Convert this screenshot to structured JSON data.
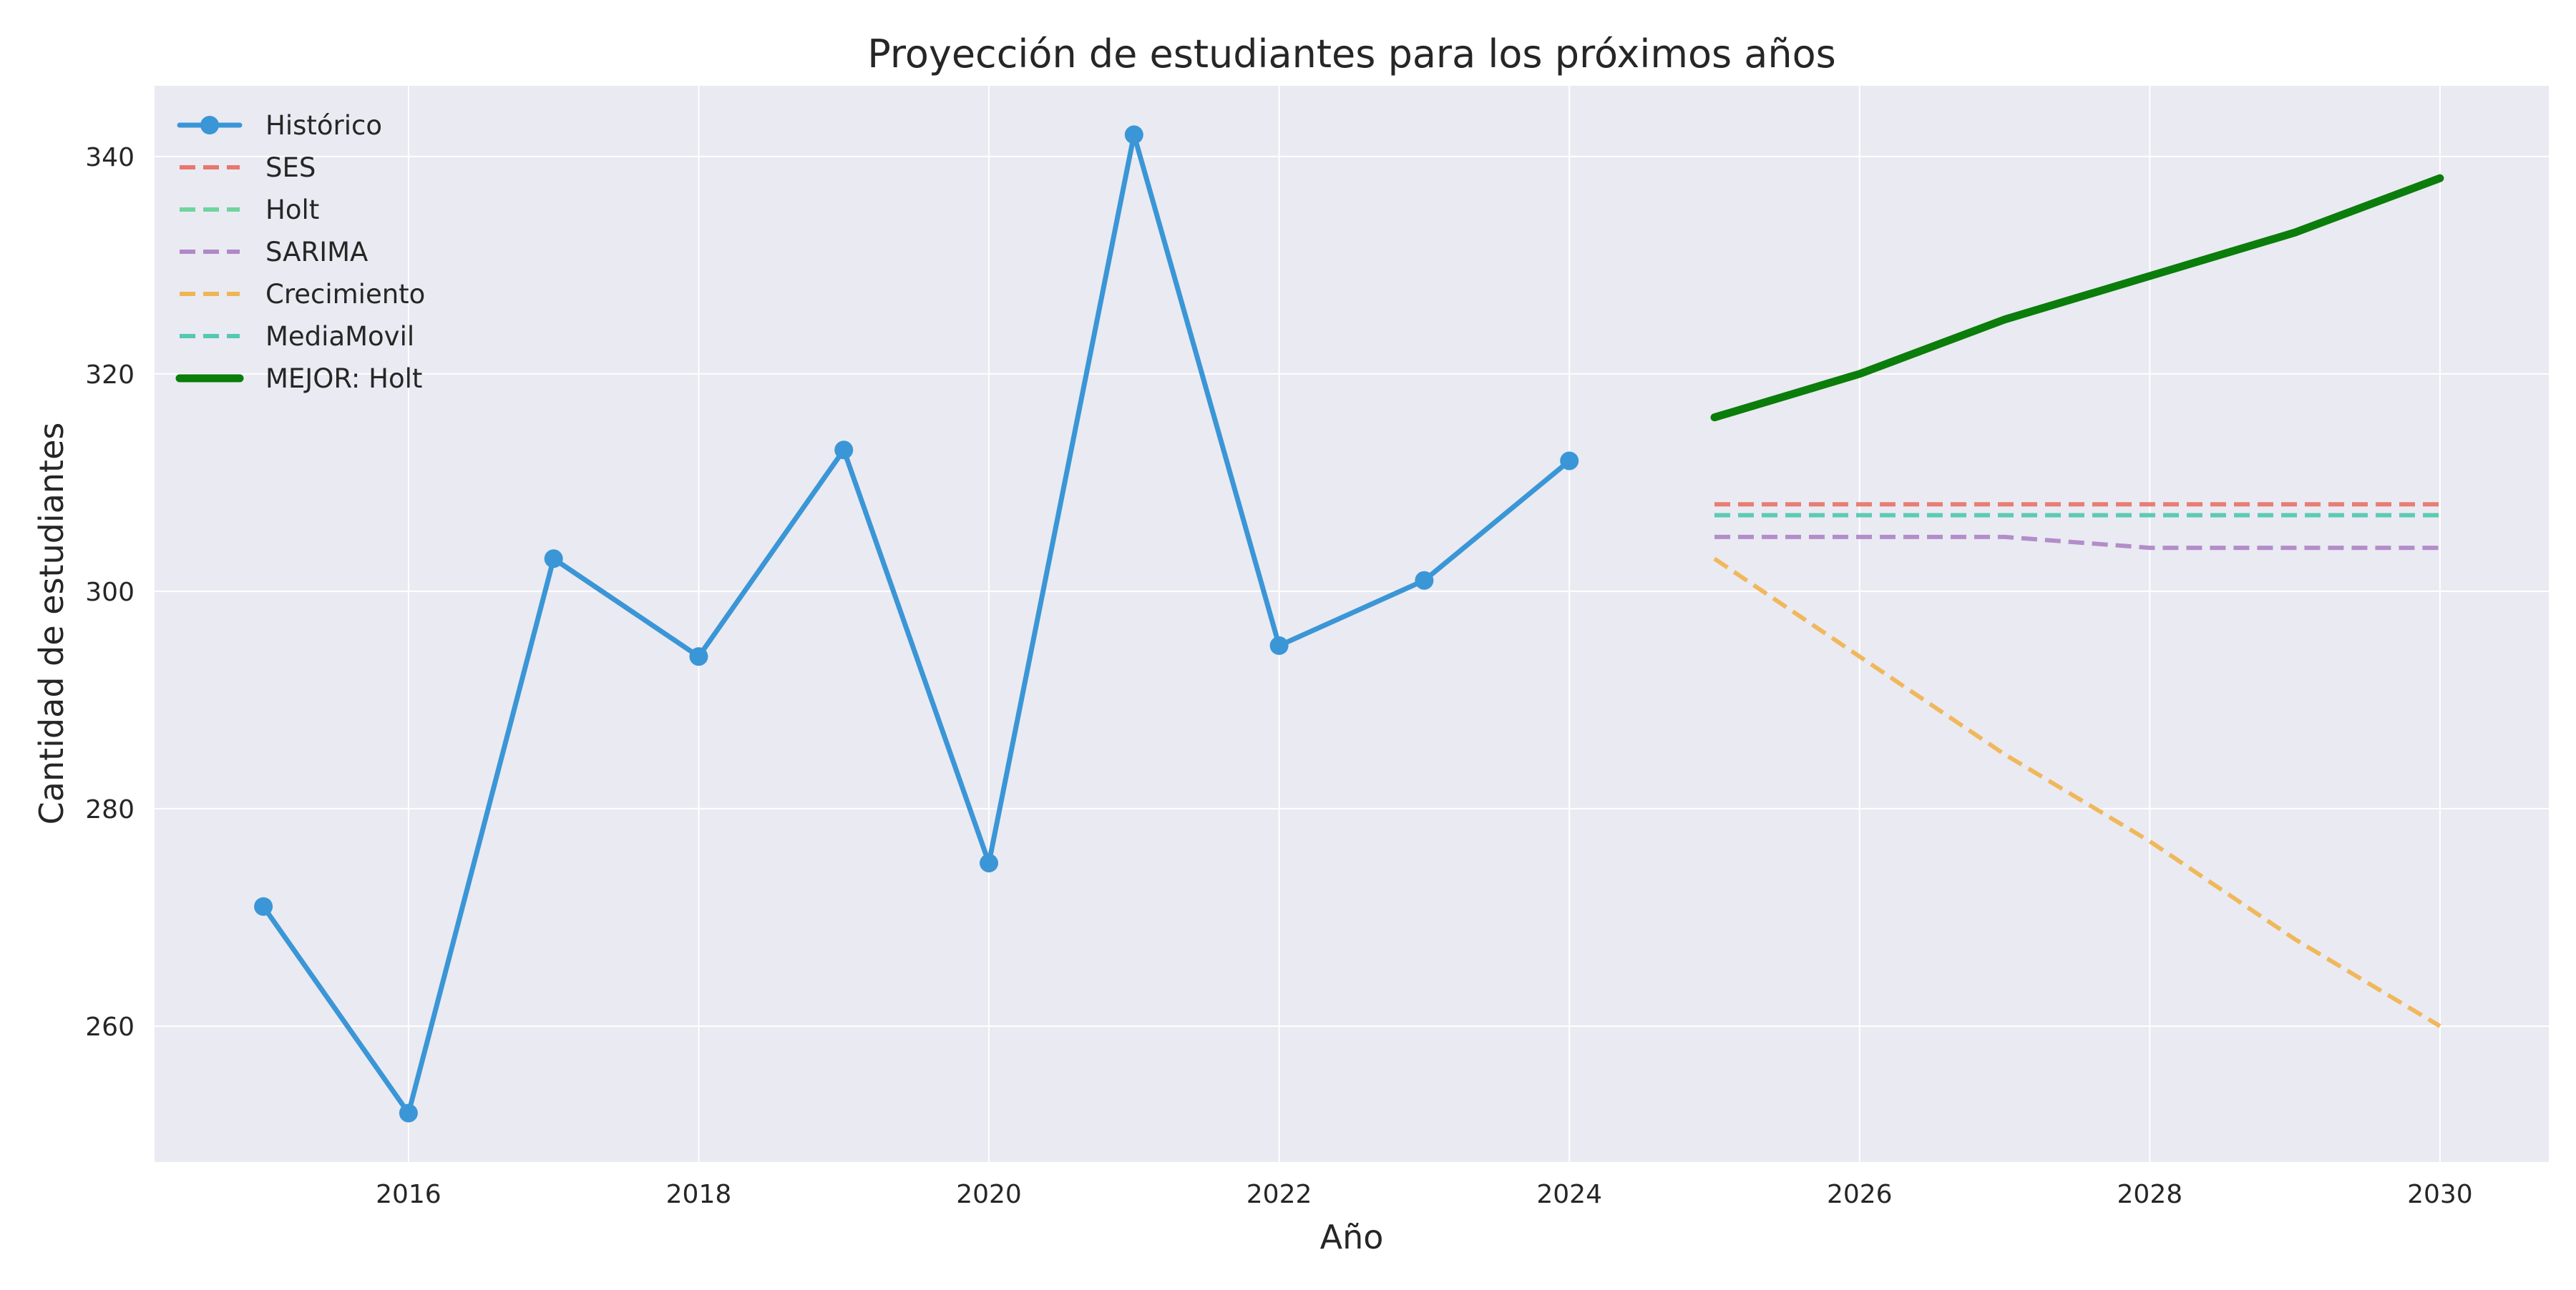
{
  "chart_data": {
    "type": "line",
    "title": "Proyección de estudiantes para los próximos años",
    "xlabel": "Año",
    "ylabel": "Cantidad de estudiantes",
    "xlim": [
      2014.25,
      2030.75
    ],
    "ylim": [
      247.5,
      346.5
    ],
    "xticks": [
      "2016",
      "2018",
      "2020",
      "2022",
      "2024",
      "2026",
      "2028",
      "2030"
    ],
    "yticks": [
      "260",
      "280",
      "300",
      "320",
      "340"
    ],
    "grid": true,
    "legend_position": "top-left",
    "series": [
      {
        "name": "Histórico",
        "style": "solid-markers",
        "color": "#3a96d6",
        "x": [
          2015,
          2016,
          2017,
          2018,
          2019,
          2020,
          2021,
          2022,
          2023,
          2024
        ],
        "y": [
          271,
          252,
          303,
          294,
          313,
          275,
          342,
          295,
          301,
          312
        ]
      },
      {
        "name": "SES",
        "style": "dashed",
        "color": "#e8776d",
        "x": [
          2025,
          2026,
          2027,
          2028,
          2029,
          2030
        ],
        "y": [
          308,
          308,
          308,
          308,
          308,
          308
        ]
      },
      {
        "name": "Holt",
        "style": "dashed",
        "color": "#6fd49d",
        "x": [
          2025,
          2026,
          2027,
          2028,
          2029,
          2030
        ],
        "y": [
          316,
          320,
          325,
          329,
          333,
          338
        ]
      },
      {
        "name": "SARIMA",
        "style": "dashed",
        "color": "#b088c7",
        "x": [
          2025,
          2026,
          2027,
          2028,
          2029,
          2030
        ],
        "y": [
          305,
          305,
          305,
          304,
          304,
          304
        ]
      },
      {
        "name": "Crecimiento",
        "style": "dashed",
        "color": "#f0b553",
        "x": [
          2025,
          2026,
          2027,
          2028,
          2029,
          2030
        ],
        "y": [
          303,
          294,
          285,
          277,
          268,
          260
        ]
      },
      {
        "name": "MediaMovil",
        "style": "dashed",
        "color": "#55c8b0",
        "x": [
          2025,
          2026,
          2027,
          2028,
          2029,
          2030
        ],
        "y": [
          307,
          307,
          307,
          307,
          307,
          307
        ]
      },
      {
        "name": "MEJOR: Holt",
        "style": "solid-thick",
        "color": "#0a7d0a",
        "x": [
          2025,
          2026,
          2027,
          2028,
          2029,
          2030
        ],
        "y": [
          316,
          320,
          325,
          329,
          333,
          338
        ]
      }
    ]
  }
}
